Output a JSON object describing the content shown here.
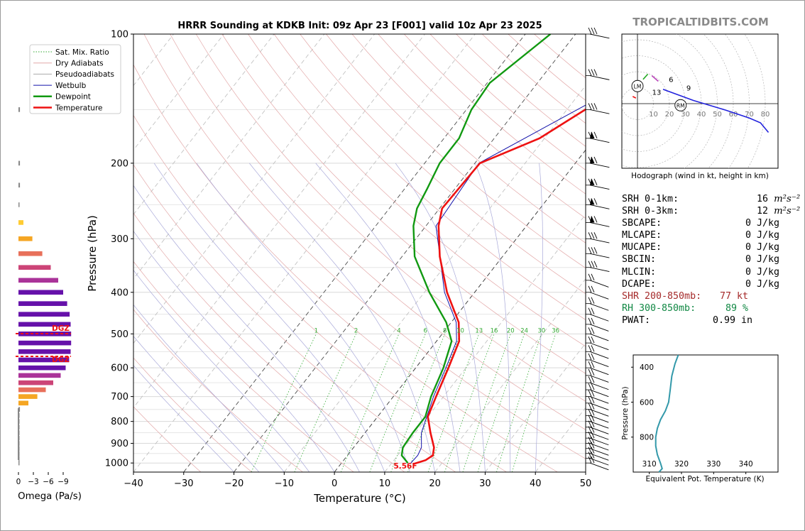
{
  "site_label": "TROPICALTIDBITS.COM",
  "chart_data": {
    "type": "line",
    "title": "HRRR Sounding at KDKB Init: 09z Apr 23 [F001] valid 10z Apr 23 2025",
    "xlabel": "Temperature (°C)",
    "ylabel": "Pressure (hPa)",
    "xlim": [
      -40,
      50
    ],
    "ylim": [
      1050,
      100
    ],
    "y_scale": "log",
    "x_ticks": [
      -40,
      -30,
      -20,
      -10,
      0,
      10,
      20,
      30,
      40,
      50
    ],
    "y_ticks": [
      100,
      200,
      300,
      400,
      500,
      600,
      700,
      800,
      900,
      1000
    ],
    "grid": true,
    "legend": {
      "placement": "top-left",
      "entries": [
        "Sat. Mix. Ratio",
        "Dry Adiabats",
        "Pseudoadiabats",
        "Wetbulb",
        "Dewpoint",
        "Temperature"
      ]
    },
    "mixing_ratio_labels": [
      "1",
      "2",
      "4",
      "6",
      "8",
      "10",
      "13",
      "16",
      "20",
      "24",
      "30",
      "36"
    ],
    "surface_label": "5.56F",
    "series": [
      {
        "name": "Temperature",
        "color": "#ee1111",
        "p": [
          100,
          130,
          175,
          200,
          255,
          280,
          330,
          400,
          470,
          520,
          600,
          700,
          780,
          850,
          920,
          960,
          985,
          1005
        ],
        "t": [
          5,
          -2,
          -11,
          -19,
          -19.5,
          -17.5,
          -12.5,
          -5.5,
          1.5,
          4.5,
          6.5,
          8.5,
          10,
          13,
          16,
          17,
          16.3,
          14.5
        ]
      },
      {
        "name": "Dewpoint",
        "color": "#119911",
        "p": [
          100,
          130,
          150,
          175,
          200,
          230,
          255,
          280,
          330,
          400,
          470,
          520,
          600,
          700,
          780,
          850,
          920,
          960,
          1000
        ],
        "td": [
          -25,
          -29.5,
          -29,
          -27,
          -27,
          -25.5,
          -24.5,
          -22.5,
          -17.5,
          -9,
          -1,
          3,
          5.5,
          7.5,
          9.5,
          9.5,
          9.8,
          10.8,
          13.2
        ]
      },
      {
        "name": "Wetbulb",
        "color": "#1111aa",
        "p": [
          100,
          130,
          200,
          280,
          400,
          470,
          520,
          600,
          700,
          780,
          850,
          920,
          960,
          1000
        ],
        "tw": [
          4.8,
          -2.3,
          -19.2,
          -18,
          -6,
          1,
          4,
          6,
          8,
          9.8,
          11.2,
          13.5,
          14,
          13.8
        ]
      }
    ],
    "wind_barb_pressures": [
      100,
      125,
      150,
      175,
      200,
      225,
      250,
      275,
      300,
      325,
      350,
      375,
      400,
      425,
      450,
      475,
      500,
      525,
      550,
      575,
      600,
      625,
      650,
      675,
      700,
      725,
      750,
      775,
      800,
      825,
      850,
      875,
      900,
      925,
      950,
      975,
      1000
    ]
  },
  "hodograph": {
    "caption": "Hodograph (wind in kt, height in km)",
    "ring_labels": [
      "10",
      "20",
      "30",
      "40",
      "50",
      "60",
      "70",
      "80"
    ],
    "markers": [
      "LM",
      "RM"
    ],
    "height_labels": [
      "13",
      "6",
      "9"
    ],
    "segments": [
      {
        "color": "#ee1111",
        "u": [
          -3,
          -1
        ],
        "v": [
          4.5,
          3.5
        ]
      },
      {
        "color": "#22aa22",
        "u": [
          3.5,
          6.5
        ],
        "v": [
          15.2,
          18.5
        ]
      },
      {
        "color": "#bb44bb",
        "u": [
          9,
          13
        ],
        "v": [
          17.5,
          14
        ]
      },
      {
        "color": "#2222dd",
        "u": [
          16,
          35,
          55,
          70,
          77,
          82
        ],
        "v": [
          9,
          2,
          -4,
          -9,
          -12,
          -18
        ]
      }
    ]
  },
  "indices": [
    {
      "label": "SRH 0-1km:",
      "value": "16",
      "unit_html": "m²s⁻²",
      "color": "#000000"
    },
    {
      "label": "SRH 0-3km:",
      "value": "12",
      "unit_html": "m²s⁻²",
      "color": "#000000"
    },
    {
      "label": "SBCAPE:",
      "value": "0 J/kg",
      "color": "#000000"
    },
    {
      "label": "MLCAPE:",
      "value": "0 J/kg",
      "color": "#000000"
    },
    {
      "label": "MUCAPE:",
      "value": "0 J/kg",
      "color": "#000000"
    },
    {
      "label": "SBCIN:",
      "value": "0 J/kg",
      "color": "#000000"
    },
    {
      "label": "MLCIN:",
      "value": "0 J/kg",
      "color": "#000000"
    },
    {
      "label": "DCAPE:",
      "value": "0 J/kg",
      "color": "#000000"
    },
    {
      "label": "SHR 200-850mb:",
      "value": "77 kt",
      "color": "#a52a2a"
    },
    {
      "label": "RH 300-850mb:",
      "value": "89 %",
      "color": "#118844"
    },
    {
      "label": "PWAT:",
      "value": "0.99 in",
      "color": "#000000"
    }
  ],
  "theta_e": {
    "xlabel": "Equivalent Pot. Temperature (K)",
    "ylabel": "Pressure (hPa)",
    "x_ticks": [
      "310",
      "320",
      "330",
      "340"
    ],
    "y_ticks": [
      "400",
      "600",
      "800"
    ],
    "xlim": [
      305,
      350
    ],
    "ylim": [
      1000,
      330
    ],
    "color": "#3399aa",
    "p": [
      330,
      380,
      450,
      530,
      600,
      650,
      700,
      750,
      800,
      850,
      900,
      950,
      980,
      1000
    ],
    "theta": [
      319,
      318,
      317,
      316.5,
      316,
      315,
      313.5,
      312.5,
      312,
      312,
      312.5,
      313.5,
      314,
      313
    ]
  },
  "omega": {
    "xlabel": "Omega (Pa/s)",
    "x_ticks": [
      "0",
      "−3",
      "−6",
      "−9"
    ],
    "dgz_label": "DGZ",
    "p": [
      150,
      200,
      225,
      250,
      275,
      300,
      325,
      350,
      375,
      400,
      425,
      450,
      475,
      500,
      525,
      550,
      575,
      600,
      625,
      650,
      675,
      700,
      725,
      750,
      775,
      800,
      825,
      850,
      875,
      900,
      925,
      950,
      975,
      1000
    ],
    "values": [
      -0.3,
      -0.3,
      -0.3,
      -0.2,
      -1.0,
      -2.8,
      -4.8,
      -6.5,
      -8.0,
      -9.0,
      -9.8,
      -10.3,
      -10.5,
      -10.6,
      -10.6,
      -10.5,
      -10.2,
      -9.5,
      -8.5,
      -7.0,
      -5.5,
      -3.8,
      -2.0,
      -0.3,
      -0.2,
      -0.2,
      -0.2,
      -0.2,
      -0.2,
      -0.2,
      -0.2,
      -0.2,
      -0.2,
      -0.2
    ]
  }
}
